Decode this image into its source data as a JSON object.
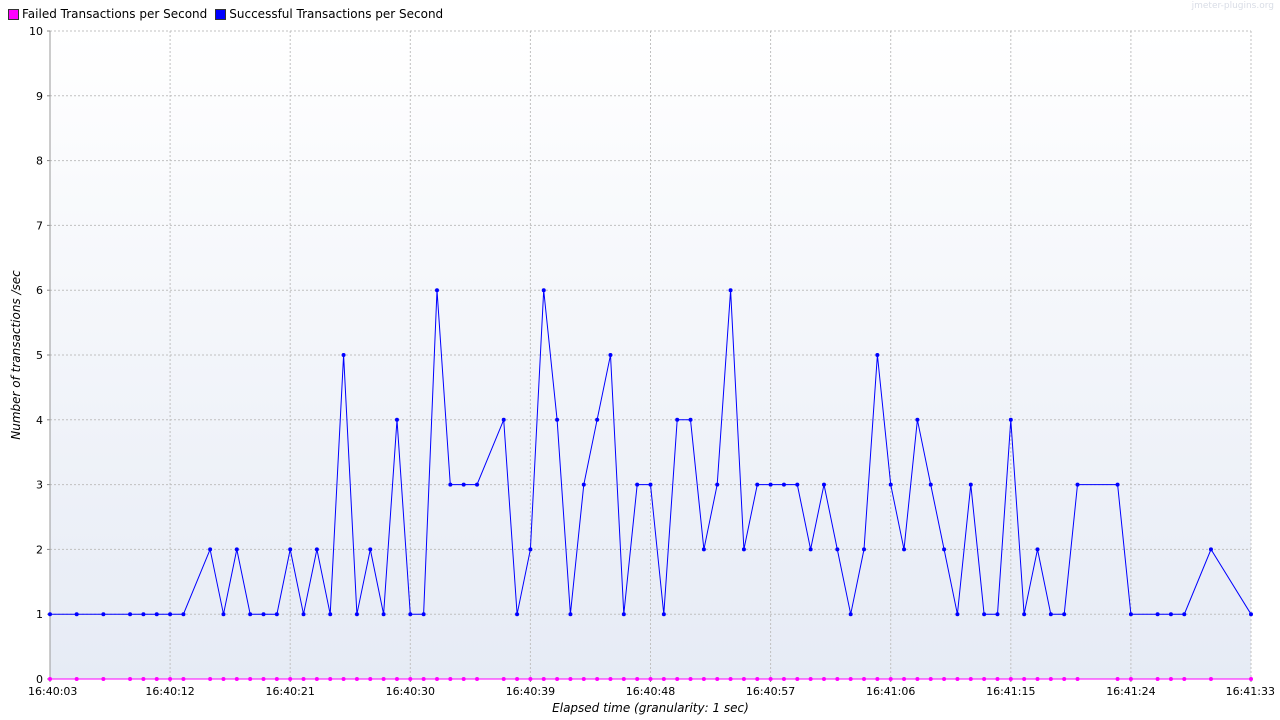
{
  "watermark": "jmeter-plugins.org",
  "legend": [
    {
      "label": "Failed Transactions per Second",
      "color": "#ff00ff"
    },
    {
      "label": "Successful Transactions per Second",
      "color": "#0000ff"
    }
  ],
  "chart_data": {
    "type": "line",
    "xlabel": "Elapsed time (granularity: 1 sec)",
    "ylabel": "Number of transactions /sec",
    "ylim": [
      0,
      10
    ],
    "yticks": [
      "0",
      "1",
      "2",
      "3",
      "4",
      "5",
      "6",
      "7",
      "8",
      "9",
      "10"
    ],
    "xlim_seconds": [
      0,
      90
    ],
    "xticks": [
      "16:40:03",
      "16:40:12",
      "16:40:21",
      "16:40:30",
      "16:40:39",
      "16:40:48",
      "16:40:57",
      "16:41:06",
      "16:41:15",
      "16:41:24",
      "16:41:33"
    ],
    "grid": true,
    "series": [
      {
        "name": "Successful Transactions per Second",
        "color": "#0000ff",
        "points": [
          [
            0,
            1
          ],
          [
            2,
            1
          ],
          [
            4,
            1
          ],
          [
            6,
            1
          ],
          [
            7,
            1
          ],
          [
            8,
            1
          ],
          [
            9,
            1
          ],
          [
            10,
            1
          ],
          [
            12,
            2
          ],
          [
            13,
            1
          ],
          [
            14,
            2
          ],
          [
            15,
            1
          ],
          [
            16,
            1
          ],
          [
            17,
            1
          ],
          [
            18,
            2
          ],
          [
            19,
            1
          ],
          [
            20,
            2
          ],
          [
            21,
            1
          ],
          [
            22,
            5
          ],
          [
            23,
            1
          ],
          [
            24,
            2
          ],
          [
            25,
            1
          ],
          [
            26,
            4
          ],
          [
            27,
            1
          ],
          [
            28,
            1
          ],
          [
            29,
            6
          ],
          [
            30,
            3
          ],
          [
            31,
            3
          ],
          [
            32,
            3
          ],
          [
            34,
            4
          ],
          [
            35,
            1
          ],
          [
            36,
            2
          ],
          [
            37,
            6
          ],
          [
            38,
            4
          ],
          [
            39,
            1
          ],
          [
            40,
            3
          ],
          [
            41,
            4
          ],
          [
            42,
            5
          ],
          [
            43,
            1
          ],
          [
            44,
            3
          ],
          [
            45,
            3
          ],
          [
            46,
            1
          ],
          [
            47,
            4
          ],
          [
            48,
            4
          ],
          [
            49,
            2
          ],
          [
            50,
            3
          ],
          [
            51,
            6
          ],
          [
            52,
            2
          ],
          [
            53,
            3
          ],
          [
            54,
            3
          ],
          [
            55,
            3
          ],
          [
            56,
            3
          ],
          [
            57,
            2
          ],
          [
            58,
            3
          ],
          [
            59,
            2
          ],
          [
            60,
            1
          ],
          [
            61,
            2
          ],
          [
            62,
            5
          ],
          [
            63,
            3
          ],
          [
            64,
            2
          ],
          [
            65,
            4
          ],
          [
            66,
            3
          ],
          [
            67,
            2
          ],
          [
            68,
            1
          ],
          [
            69,
            3
          ],
          [
            70,
            1
          ],
          [
            71,
            1
          ],
          [
            72,
            4
          ],
          [
            73,
            1
          ],
          [
            74,
            2
          ],
          [
            75,
            1
          ],
          [
            76,
            1
          ],
          [
            77,
            3
          ],
          [
            80,
            3
          ],
          [
            81,
            1
          ],
          [
            83,
            1
          ],
          [
            84,
            1
          ],
          [
            85,
            1
          ],
          [
            87,
            2
          ],
          [
            90,
            1
          ]
        ]
      },
      {
        "name": "Failed Transactions per Second",
        "color": "#ff00ff",
        "points": [
          [
            0,
            0
          ],
          [
            2,
            0
          ],
          [
            4,
            0
          ],
          [
            6,
            0
          ],
          [
            7,
            0
          ],
          [
            8,
            0
          ],
          [
            9,
            0
          ],
          [
            10,
            0
          ],
          [
            12,
            0
          ],
          [
            13,
            0
          ],
          [
            14,
            0
          ],
          [
            15,
            0
          ],
          [
            16,
            0
          ],
          [
            17,
            0
          ],
          [
            18,
            0
          ],
          [
            19,
            0
          ],
          [
            20,
            0
          ],
          [
            21,
            0
          ],
          [
            22,
            0
          ],
          [
            23,
            0
          ],
          [
            24,
            0
          ],
          [
            25,
            0
          ],
          [
            26,
            0
          ],
          [
            27,
            0
          ],
          [
            28,
            0
          ],
          [
            29,
            0
          ],
          [
            30,
            0
          ],
          [
            31,
            0
          ],
          [
            32,
            0
          ],
          [
            34,
            0
          ],
          [
            35,
            0
          ],
          [
            36,
            0
          ],
          [
            37,
            0
          ],
          [
            38,
            0
          ],
          [
            39,
            0
          ],
          [
            40,
            0
          ],
          [
            41,
            0
          ],
          [
            42,
            0
          ],
          [
            43,
            0
          ],
          [
            44,
            0
          ],
          [
            45,
            0
          ],
          [
            46,
            0
          ],
          [
            47,
            0
          ],
          [
            48,
            0
          ],
          [
            49,
            0
          ],
          [
            50,
            0
          ],
          [
            51,
            0
          ],
          [
            52,
            0
          ],
          [
            53,
            0
          ],
          [
            54,
            0
          ],
          [
            55,
            0
          ],
          [
            56,
            0
          ],
          [
            57,
            0
          ],
          [
            58,
            0
          ],
          [
            59,
            0
          ],
          [
            60,
            0
          ],
          [
            61,
            0
          ],
          [
            62,
            0
          ],
          [
            63,
            0
          ],
          [
            64,
            0
          ],
          [
            65,
            0
          ],
          [
            66,
            0
          ],
          [
            67,
            0
          ],
          [
            68,
            0
          ],
          [
            69,
            0
          ],
          [
            70,
            0
          ],
          [
            71,
            0
          ],
          [
            72,
            0
          ],
          [
            73,
            0
          ],
          [
            74,
            0
          ],
          [
            75,
            0
          ],
          [
            76,
            0
          ],
          [
            77,
            0
          ],
          [
            80,
            0
          ],
          [
            81,
            0
          ],
          [
            83,
            0
          ],
          [
            84,
            0
          ],
          [
            85,
            0
          ],
          [
            87,
            0
          ],
          [
            90,
            0
          ]
        ]
      }
    ]
  }
}
